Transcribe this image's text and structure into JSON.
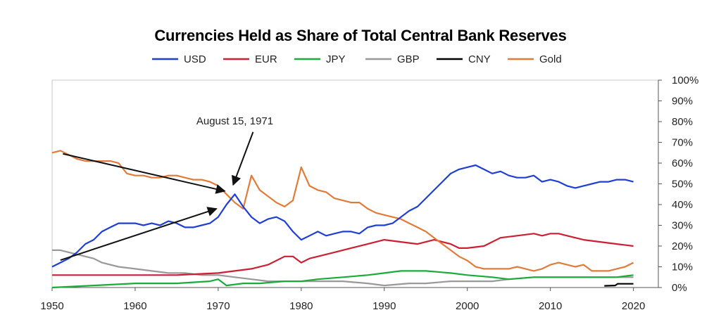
{
  "chart_data": {
    "type": "line",
    "title": "Currencies Held as Share of Total Central Bank Reserves",
    "xlabel": "",
    "ylabel": "",
    "xlim": [
      1950,
      2023
    ],
    "ylim": [
      0,
      100
    ],
    "x_ticks": [
      1950,
      1960,
      1970,
      1980,
      1990,
      2000,
      2010,
      2020
    ],
    "y_ticks": [
      0,
      10,
      20,
      30,
      40,
      50,
      60,
      70,
      80,
      90,
      100
    ],
    "y_tick_suffix": "%",
    "legend_position": "top",
    "grid": false,
    "annotation": {
      "text": "August 15, 1971",
      "x": 1972,
      "arrows": [
        {
          "from": [
            1951.3,
            64.5
          ],
          "to": [
            1970.8,
            46.5
          ]
        },
        {
          "from": [
            1951.0,
            13.2
          ],
          "to": [
            1969.8,
            38.0
          ]
        },
        {
          "from": [
            1974.2,
            75.0
          ],
          "to": [
            1971.8,
            49.5
          ]
        }
      ]
    },
    "series": [
      {
        "name": "USD",
        "color": "#1f3ed6",
        "points": [
          [
            1950,
            10
          ],
          [
            1951,
            12
          ],
          [
            1952,
            14
          ],
          [
            1953,
            17
          ],
          [
            1954,
            21
          ],
          [
            1955,
            23
          ],
          [
            1956,
            27
          ],
          [
            1957,
            29
          ],
          [
            1958,
            31
          ],
          [
            1959,
            31
          ],
          [
            1960,
            31
          ],
          [
            1961,
            30
          ],
          [
            1962,
            31
          ],
          [
            1963,
            30
          ],
          [
            1964,
            32
          ],
          [
            1965,
            31
          ],
          [
            1966,
            29
          ],
          [
            1967,
            29
          ],
          [
            1968,
            30
          ],
          [
            1969,
            31
          ],
          [
            1970,
            34
          ],
          [
            1971,
            40
          ],
          [
            1972,
            45
          ],
          [
            1973,
            39
          ],
          [
            1974,
            34
          ],
          [
            1975,
            31
          ],
          [
            1976,
            33
          ],
          [
            1977,
            34
          ],
          [
            1978,
            32
          ],
          [
            1979,
            27
          ],
          [
            1980,
            23
          ],
          [
            1981,
            25
          ],
          [
            1982,
            27
          ],
          [
            1983,
            25
          ],
          [
            1984,
            26
          ],
          [
            1985,
            27
          ],
          [
            1986,
            27
          ],
          [
            1987,
            26
          ],
          [
            1988,
            29
          ],
          [
            1989,
            30
          ],
          [
            1990,
            30
          ],
          [
            1991,
            31
          ],
          [
            1992,
            34
          ],
          [
            1993,
            37
          ],
          [
            1994,
            39
          ],
          [
            1995,
            43
          ],
          [
            1996,
            47
          ],
          [
            1997,
            51
          ],
          [
            1998,
            55
          ],
          [
            1999,
            57
          ],
          [
            2000,
            58
          ],
          [
            2001,
            59
          ],
          [
            2002,
            57
          ],
          [
            2003,
            55
          ],
          [
            2004,
            56
          ],
          [
            2005,
            54
          ],
          [
            2006,
            53
          ],
          [
            2007,
            53
          ],
          [
            2008,
            54
          ],
          [
            2009,
            51
          ],
          [
            2010,
            52
          ],
          [
            2011,
            51
          ],
          [
            2012,
            49
          ],
          [
            2013,
            48
          ],
          [
            2014,
            49
          ],
          [
            2015,
            50
          ],
          [
            2016,
            51
          ],
          [
            2017,
            51
          ],
          [
            2018,
            52
          ],
          [
            2019,
            52
          ],
          [
            2020,
            51
          ]
        ]
      },
      {
        "name": "EUR",
        "color": "#cc1f33",
        "points": [
          [
            1950,
            6
          ],
          [
            1955,
            6
          ],
          [
            1960,
            6
          ],
          [
            1965,
            6
          ],
          [
            1970,
            7
          ],
          [
            1972,
            8
          ],
          [
            1974,
            9
          ],
          [
            1976,
            11
          ],
          [
            1978,
            15
          ],
          [
            1979,
            15
          ],
          [
            1980,
            12
          ],
          [
            1981,
            14
          ],
          [
            1982,
            15
          ],
          [
            1984,
            17
          ],
          [
            1986,
            19
          ],
          [
            1988,
            21
          ],
          [
            1990,
            23
          ],
          [
            1992,
            22
          ],
          [
            1994,
            21
          ],
          [
            1996,
            23
          ],
          [
            1998,
            21
          ],
          [
            1999,
            19
          ],
          [
            2000,
            19
          ],
          [
            2002,
            20
          ],
          [
            2004,
            24
          ],
          [
            2006,
            25
          ],
          [
            2008,
            26
          ],
          [
            2009,
            25
          ],
          [
            2010,
            26
          ],
          [
            2011,
            26
          ],
          [
            2012,
            25
          ],
          [
            2014,
            23
          ],
          [
            2016,
            22
          ],
          [
            2018,
            21
          ],
          [
            2020,
            20
          ]
        ]
      },
      {
        "name": "JPY",
        "color": "#1aab3a",
        "points": [
          [
            1950,
            0
          ],
          [
            1955,
            1
          ],
          [
            1960,
            2
          ],
          [
            1965,
            2
          ],
          [
            1969,
            3
          ],
          [
            1970,
            4
          ],
          [
            1971,
            1
          ],
          [
            1973,
            2
          ],
          [
            1975,
            2
          ],
          [
            1978,
            3
          ],
          [
            1980,
            3
          ],
          [
            1982,
            4
          ],
          [
            1985,
            5
          ],
          [
            1988,
            6
          ],
          [
            1990,
            7
          ],
          [
            1992,
            8
          ],
          [
            1995,
            8
          ],
          [
            1998,
            7
          ],
          [
            2000,
            6
          ],
          [
            2003,
            5
          ],
          [
            2005,
            4
          ],
          [
            2008,
            5
          ],
          [
            2010,
            5
          ],
          [
            2012,
            5
          ],
          [
            2015,
            5
          ],
          [
            2018,
            5
          ],
          [
            2020,
            6
          ]
        ]
      },
      {
        "name": "GBP",
        "color": "#999999",
        "points": [
          [
            1950,
            18
          ],
          [
            1951,
            18
          ],
          [
            1952,
            17
          ],
          [
            1953,
            16
          ],
          [
            1955,
            14
          ],
          [
            1956,
            12
          ],
          [
            1958,
            10
          ],
          [
            1960,
            9
          ],
          [
            1962,
            8
          ],
          [
            1964,
            7
          ],
          [
            1966,
            7
          ],
          [
            1968,
            6
          ],
          [
            1970,
            6
          ],
          [
            1972,
            5
          ],
          [
            1974,
            4
          ],
          [
            1976,
            3
          ],
          [
            1978,
            3
          ],
          [
            1980,
            3
          ],
          [
            1983,
            3
          ],
          [
            1985,
            3
          ],
          [
            1988,
            2
          ],
          [
            1990,
            1
          ],
          [
            1993,
            2
          ],
          [
            1995,
            2
          ],
          [
            1998,
            3
          ],
          [
            2000,
            3
          ],
          [
            2003,
            3
          ],
          [
            2005,
            4
          ],
          [
            2008,
            5
          ],
          [
            2010,
            5
          ],
          [
            2013,
            5
          ],
          [
            2016,
            5
          ],
          [
            2018,
            5
          ],
          [
            2020,
            5
          ]
        ]
      },
      {
        "name": "CNY",
        "color": "#000000",
        "points": [
          [
            2016.5,
            0.8
          ],
          [
            2017.8,
            1.0
          ],
          [
            2018.1,
            1.8
          ],
          [
            2020,
            1.8
          ]
        ]
      },
      {
        "name": "Gold",
        "color": "#e07b39",
        "points": [
          [
            1950,
            65
          ],
          [
            1951,
            66
          ],
          [
            1952,
            64
          ],
          [
            1953,
            62
          ],
          [
            1954,
            61
          ],
          [
            1955,
            61
          ],
          [
            1956,
            61
          ],
          [
            1957,
            61
          ],
          [
            1958,
            60
          ],
          [
            1959,
            55
          ],
          [
            1960,
            54
          ],
          [
            1961,
            54
          ],
          [
            1962,
            53
          ],
          [
            1963,
            53
          ],
          [
            1964,
            54
          ],
          [
            1965,
            54
          ],
          [
            1966,
            53
          ],
          [
            1967,
            52
          ],
          [
            1968,
            52
          ],
          [
            1969,
            51
          ],
          [
            1970,
            49
          ],
          [
            1971,
            45
          ],
          [
            1972,
            41
          ],
          [
            1973,
            38
          ],
          [
            1974,
            54
          ],
          [
            1975,
            47
          ],
          [
            1976,
            44
          ],
          [
            1977,
            41
          ],
          [
            1978,
            39
          ],
          [
            1979,
            42
          ],
          [
            1980,
            58
          ],
          [
            1981,
            49
          ],
          [
            1982,
            47
          ],
          [
            1983,
            46
          ],
          [
            1984,
            43
          ],
          [
            1985,
            42
          ],
          [
            1986,
            41
          ],
          [
            1987,
            41
          ],
          [
            1988,
            38
          ],
          [
            1989,
            36
          ],
          [
            1990,
            35
          ],
          [
            1991,
            34
          ],
          [
            1992,
            33
          ],
          [
            1993,
            31
          ],
          [
            1994,
            29
          ],
          [
            1995,
            27
          ],
          [
            1996,
            24
          ],
          [
            1997,
            21
          ],
          [
            1998,
            18
          ],
          [
            1999,
            15
          ],
          [
            2000,
            13
          ],
          [
            2001,
            10
          ],
          [
            2002,
            9
          ],
          [
            2003,
            9
          ],
          [
            2004,
            9
          ],
          [
            2005,
            9
          ],
          [
            2006,
            10
          ],
          [
            2007,
            9
          ],
          [
            2008,
            8
          ],
          [
            2009,
            9
          ],
          [
            2010,
            11
          ],
          [
            2011,
            12
          ],
          [
            2012,
            11
          ],
          [
            2013,
            10
          ],
          [
            2014,
            11
          ],
          [
            2015,
            8
          ],
          [
            2016,
            8
          ],
          [
            2017,
            8
          ],
          [
            2018,
            9
          ],
          [
            2019,
            10
          ],
          [
            2020,
            12
          ]
        ]
      }
    ]
  }
}
